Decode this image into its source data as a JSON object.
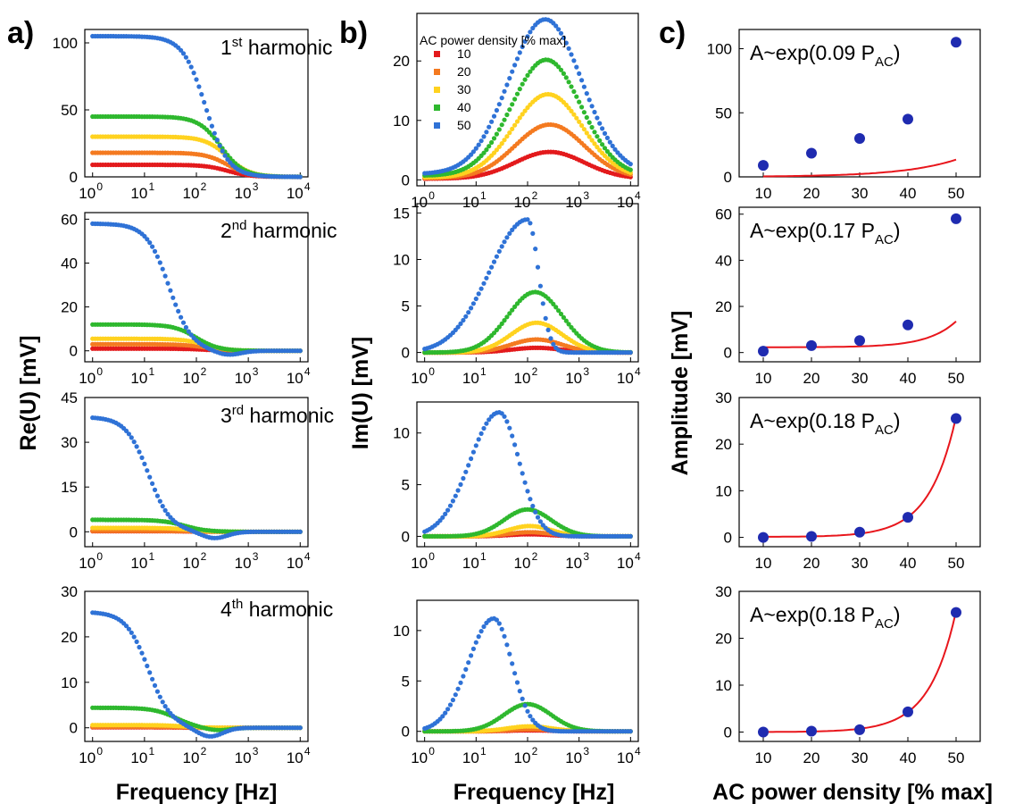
{
  "panel_labels": [
    "a)",
    "b)",
    "c)"
  ],
  "axis_labels": {
    "a_ylabel": "Re(U) [mV]",
    "b_ylabel": "Im(U) [mV]",
    "c_ylabel": "Amplitude [mV]",
    "a_xlabel": "Frequency [Hz]",
    "b_xlabel": "Frequency [Hz]",
    "c_xlabel": "AC power density [% max]"
  },
  "legend": {
    "title": "AC power density [% max]",
    "entries": [
      "10",
      "20",
      "30",
      "40",
      "50"
    ]
  },
  "colors": {
    "s10": "#e31a1c",
    "s20": "#f47a20",
    "s30": "#ffd21f",
    "s40": "#2eb82e",
    "s50": "#2f72d6",
    "fit_line": "#e8161c",
    "fit_marker": "#1f2bb0"
  },
  "chart_data": [
    {
      "id": "a1",
      "type": "line",
      "xscale": "log",
      "xlim": [
        1,
        10000
      ],
      "ylim": [
        0,
        110
      ],
      "yticks": [
        0,
        50,
        100
      ],
      "xticks": [
        "10^0",
        "10^1",
        "10^2",
        "10^3",
        "10^4"
      ],
      "annotation": {
        "base": "1",
        "sup": "st",
        "tail": " harmonic"
      },
      "series": [
        {
          "name": "10",
          "shape": "lorentz_re",
          "amp": 9,
          "fc": 400
        },
        {
          "name": "20",
          "shape": "lorentz_re",
          "amp": 18,
          "fc": 400
        },
        {
          "name": "30",
          "shape": "lorentz_re",
          "amp": 30,
          "fc": 400
        },
        {
          "name": "40",
          "shape": "lorentz_re",
          "amp": 45,
          "fc": 300
        },
        {
          "name": "50",
          "shape": "lorentz_re",
          "amp": 105,
          "fc": 150
        }
      ]
    },
    {
      "id": "a2",
      "type": "line",
      "xscale": "log",
      "xlim": [
        1,
        10000
      ],
      "ylim": [
        -5,
        63
      ],
      "yticks": [
        0,
        20,
        40,
        60
      ],
      "xticks": [
        "10^0",
        "10^1",
        "10^2",
        "10^3",
        "10^4"
      ],
      "annotation": {
        "base": "2",
        "sup": "nd",
        "tail": " harmonic"
      },
      "series": [
        {
          "name": "10",
          "shape": "lorentz_re",
          "amp": 1,
          "fc": 150
        },
        {
          "name": "20",
          "shape": "lorentz_re",
          "amp": 3,
          "fc": 150
        },
        {
          "name": "30",
          "shape": "lorentz_re",
          "amp": 5.5,
          "fc": 150
        },
        {
          "name": "40",
          "shape": "lorentz_re",
          "amp": 12,
          "fc": 100
        },
        {
          "name": "50",
          "shape": "undershoot",
          "amp": 58,
          "fc": 30,
          "dip": 2,
          "fd": 400
        }
      ]
    },
    {
      "id": "a3",
      "type": "line",
      "xscale": "log",
      "xlim": [
        1,
        10000
      ],
      "ylim": [
        -5,
        45
      ],
      "yticks": [
        0,
        15,
        30,
        45
      ],
      "xticks": [
        "10^0",
        "10^1",
        "10^2",
        "10^3",
        "10^4"
      ],
      "annotation": {
        "base": "3",
        "sup": "rd",
        "tail": " harmonic"
      },
      "series": [
        {
          "name": "10",
          "shape": "lorentz_re",
          "amp": 0.2,
          "fc": 80
        },
        {
          "name": "20",
          "shape": "lorentz_re",
          "amp": 0.3,
          "fc": 80
        },
        {
          "name": "30",
          "shape": "lorentz_re",
          "amp": 1.3,
          "fc": 80
        },
        {
          "name": "40",
          "shape": "lorentz_re",
          "amp": 4,
          "fc": 60
        },
        {
          "name": "50",
          "shape": "undershoot",
          "amp": 38.5,
          "fc": 12,
          "dip": 2.2,
          "fd": 220
        }
      ]
    },
    {
      "id": "a4",
      "type": "line",
      "xscale": "log",
      "xlim": [
        1,
        10000
      ],
      "ylim": [
        -3,
        30
      ],
      "yticks": [
        0,
        10,
        20,
        30
      ],
      "xticks": [
        "10^0",
        "10^1",
        "10^2",
        "10^3",
        "10^4"
      ],
      "annotation": {
        "base": "4",
        "sup": "th",
        "tail": " harmonic"
      },
      "series": [
        {
          "name": "10",
          "shape": "lorentz_re",
          "amp": 0.1,
          "fc": 60
        },
        {
          "name": "20",
          "shape": "lorentz_re",
          "amp": 0.2,
          "fc": 60
        },
        {
          "name": "30",
          "shape": "lorentz_re",
          "amp": 0.6,
          "fc": 60
        },
        {
          "name": "40",
          "shape": "undershoot",
          "amp": 4.4,
          "fc": 40,
          "dip": 0.6,
          "fd": 250
        },
        {
          "name": "50",
          "shape": "undershoot",
          "amp": 25.5,
          "fc": 12,
          "dip": 2,
          "fd": 180
        }
      ]
    },
    {
      "id": "b1",
      "type": "line",
      "xscale": "log",
      "xlim": [
        1,
        10000
      ],
      "ylim": [
        -1,
        28
      ],
      "yticks": [
        0,
        10,
        20
      ],
      "xticks": [
        "10^0",
        "10^1",
        "10^2",
        "10^3",
        "10^4"
      ],
      "series": [
        {
          "name": "10",
          "shape": "peak",
          "amp": 4.5,
          "fp": 270,
          "w": 0.95,
          "base": 0.2
        },
        {
          "name": "20",
          "shape": "peak",
          "amp": 9,
          "fp": 270,
          "w": 0.95,
          "base": 0.3
        },
        {
          "name": "30",
          "shape": "peak",
          "amp": 14,
          "fp": 250,
          "w": 0.95,
          "base": 0.4
        },
        {
          "name": "40",
          "shape": "peak",
          "amp": 19.5,
          "fp": 230,
          "w": 0.95,
          "base": 0.7
        },
        {
          "name": "50",
          "shape": "peak",
          "amp": 26,
          "fp": 220,
          "w": 1.0,
          "base": 1.0
        }
      ]
    },
    {
      "id": "b2",
      "type": "line",
      "xscale": "log",
      "xlim": [
        1,
        10000
      ],
      "ylim": [
        -1,
        16
      ],
      "yticks": [
        0,
        5,
        10,
        15
      ],
      "xticks": [
        "10^0",
        "10^1",
        "10^2",
        "10^3",
        "10^4"
      ],
      "series": [
        {
          "name": "10",
          "shape": "peak",
          "amp": 0.5,
          "fp": 150,
          "w": 0.7
        },
        {
          "name": "20",
          "shape": "peak",
          "amp": 1.4,
          "fp": 150,
          "w": 0.7
        },
        {
          "name": "30",
          "shape": "peak",
          "amp": 3.2,
          "fp": 150,
          "w": 0.7
        },
        {
          "name": "40",
          "shape": "peak",
          "amp": 6.5,
          "fp": 140,
          "w": 0.75
        },
        {
          "name": "50",
          "shape": "skewpeak",
          "amp": 14.3,
          "fp": 100,
          "wl": 1.05,
          "wr": 0.3
        }
      ]
    },
    {
      "id": "b3",
      "type": "line",
      "xscale": "log",
      "xlim": [
        1,
        10000
      ],
      "ylim": [
        -1,
        13
      ],
      "yticks": [
        0,
        5,
        10
      ],
      "xticks": [
        "10^0",
        "10^1",
        "10^2",
        "10^3",
        "10^4"
      ],
      "series": [
        {
          "name": "10",
          "shape": "peak",
          "amp": 0.2,
          "fp": 110,
          "w": 0.6
        },
        {
          "name": "20",
          "shape": "peak",
          "amp": 0.4,
          "fp": 110,
          "w": 0.6
        },
        {
          "name": "30",
          "shape": "peak",
          "amp": 1,
          "fp": 110,
          "w": 0.6
        },
        {
          "name": "40",
          "shape": "peak",
          "amp": 2.6,
          "fp": 100,
          "w": 0.65
        },
        {
          "name": "50",
          "shape": "skewpeak",
          "amp": 12,
          "fp": 28,
          "wl": 0.8,
          "wr": 0.55
        }
      ]
    },
    {
      "id": "b4",
      "type": "line",
      "xscale": "log",
      "xlim": [
        1,
        10000
      ],
      "ylim": [
        -1,
        13
      ],
      "yticks": [
        0,
        5,
        10
      ],
      "xticks": [
        "10^0",
        "10^1",
        "10^2",
        "10^3",
        "10^4"
      ],
      "series": [
        {
          "name": "10",
          "shape": "peak",
          "amp": 0.1,
          "fp": 110,
          "w": 0.6
        },
        {
          "name": "20",
          "shape": "peak",
          "amp": 0.2,
          "fp": 110,
          "w": 0.6
        },
        {
          "name": "30",
          "shape": "peak",
          "amp": 0.5,
          "fp": 110,
          "w": 0.6
        },
        {
          "name": "40",
          "shape": "peak",
          "amp": 2.7,
          "fp": 100,
          "w": 0.65
        },
        {
          "name": "50",
          "shape": "skewpeak",
          "amp": 11.2,
          "fp": 22,
          "wl": 0.7,
          "wr": 0.5
        }
      ]
    },
    {
      "id": "c1",
      "type": "scatter",
      "xlim": [
        5,
        55
      ],
      "ylim": [
        0,
        115
      ],
      "yticks": [
        0,
        50,
        100
      ],
      "xticks": [
        10,
        20,
        30,
        40,
        50
      ],
      "annotation": {
        "base": "A~exp(0.09 P",
        "sub": "AC",
        "tail": ")"
      },
      "x": [
        10,
        20,
        30,
        40,
        50
      ],
      "y": [
        9,
        18.5,
        30,
        45,
        105
      ],
      "fit": {
        "k": 0.09,
        "y0": 0,
        "a": -1.9,
        "b": 1.123
      }
    },
    {
      "id": "c2",
      "type": "scatter",
      "xlim": [
        5,
        55
      ],
      "ylim": [
        -4,
        63
      ],
      "yticks": [
        0,
        20,
        40,
        60
      ],
      "xticks": [
        10,
        20,
        30,
        40,
        50
      ],
      "annotation": {
        "base": "A~exp(0.17 P",
        "sub": "AC",
        "tail": ")"
      },
      "x": [
        10,
        20,
        30,
        40,
        50
      ],
      "y": [
        0.6,
        3,
        5.2,
        12,
        58
      ],
      "fit": {
        "k": 0.17,
        "y0": 2.3,
        "a": -6.08,
        "b": 0.1
      }
    },
    {
      "id": "c3",
      "type": "scatter",
      "xlim": [
        5,
        55
      ],
      "ylim": [
        -2,
        30
      ],
      "yticks": [
        0,
        10,
        20,
        30
      ],
      "xticks": [
        10,
        20,
        30,
        40,
        50
      ],
      "annotation": {
        "base": "A~exp(0.18 P",
        "sub": "AC",
        "tail": ")"
      },
      "x": [
        10,
        20,
        30,
        40,
        50
      ],
      "y": [
        0,
        0.2,
        1.1,
        4.3,
        25.5
      ],
      "fit": {
        "k": 0.18,
        "y0": 0.1,
        "a": -5.75,
        "b": 0.1
      }
    },
    {
      "id": "c4",
      "type": "scatter",
      "xlim": [
        5,
        55
      ],
      "ylim": [
        -2,
        30
      ],
      "yticks": [
        0,
        10,
        20,
        30
      ],
      "xticks": [
        10,
        20,
        30,
        40,
        50
      ],
      "annotation": {
        "base": "A~exp(0.18 P",
        "sub": "AC",
        "tail": ")"
      },
      "x": [
        10,
        20,
        30,
        40,
        50
      ],
      "y": [
        0,
        0.2,
        0.5,
        4.3,
        25.5
      ],
      "fit": {
        "k": 0.18,
        "y0": 0,
        "a": -5.75,
        "b": 0.1
      }
    }
  ]
}
